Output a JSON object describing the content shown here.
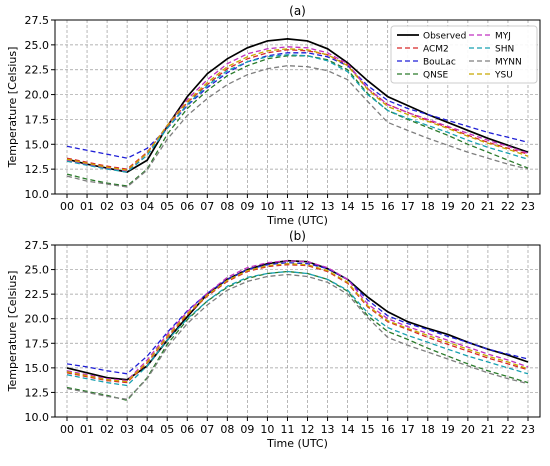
{
  "chart_data": [
    {
      "type": "line",
      "title": "(a)",
      "xlabel": "Time (UTC)",
      "ylabel": "Temperature [Celsius]",
      "categories": [
        "00",
        "01",
        "02",
        "03",
        "04",
        "05",
        "06",
        "07",
        "08",
        "09",
        "10",
        "11",
        "12",
        "13",
        "14",
        "15",
        "16",
        "17",
        "18",
        "19",
        "20",
        "21",
        "22",
        "23"
      ],
      "ylim": [
        10.0,
        27.5
      ],
      "yticks": [
        "10.0",
        "12.5",
        "15.0",
        "17.5",
        "20.0",
        "22.5",
        "25.0",
        "27.5"
      ],
      "grid": true,
      "legend_position": "top-right",
      "series": [
        {
          "name": "Observed",
          "color": "#000000",
          "dashed": false,
          "values": [
            13.5,
            13.0,
            12.6,
            12.2,
            13.4,
            16.8,
            19.8,
            22.1,
            23.6,
            24.7,
            25.4,
            25.6,
            25.4,
            24.6,
            23.2,
            21.4,
            19.8,
            18.9,
            18.0,
            17.2,
            16.4,
            15.6,
            14.9,
            14.2
          ]
        },
        {
          "name": "ACM2",
          "color": "#d62728",
          "dashed": true,
          "values": [
            13.6,
            13.2,
            12.8,
            12.5,
            14.2,
            16.8,
            19.2,
            21.0,
            22.6,
            23.6,
            24.2,
            24.5,
            24.4,
            24.0,
            23.0,
            20.6,
            19.0,
            18.2,
            17.4,
            16.7,
            15.9,
            15.2,
            14.6,
            14.0
          ]
        },
        {
          "name": "BouLac",
          "color": "#1f1fd6",
          "dashed": true,
          "values": [
            14.8,
            14.4,
            14.0,
            13.6,
            14.6,
            16.6,
            18.9,
            20.7,
            22.2,
            23.3,
            23.9,
            24.2,
            24.2,
            23.8,
            22.9,
            20.9,
            19.4,
            18.6,
            18.0,
            17.4,
            16.8,
            16.2,
            15.7,
            15.2
          ]
        },
        {
          "name": "QNSE",
          "color": "#2a7a2a",
          "dashed": true,
          "values": [
            12.0,
            11.5,
            11.1,
            10.8,
            12.5,
            16.0,
            18.6,
            20.4,
            21.9,
            22.9,
            23.6,
            23.9,
            23.9,
            23.5,
            22.5,
            20.1,
            18.4,
            17.5,
            16.7,
            15.9,
            15.0,
            14.2,
            13.4,
            12.6
          ]
        },
        {
          "name": "MYJ",
          "color": "#c030c0",
          "dashed": true,
          "values": [
            13.4,
            13.0,
            12.6,
            12.3,
            14.1,
            16.9,
            19.5,
            21.5,
            23.1,
            24.1,
            24.6,
            24.8,
            24.7,
            24.2,
            23.1,
            20.6,
            19.0,
            18.2,
            17.5,
            16.8,
            16.1,
            15.4,
            14.8,
            14.1
          ]
        },
        {
          "name": "SHN",
          "color": "#17a0b0",
          "dashed": true,
          "values": [
            13.3,
            12.9,
            12.5,
            12.2,
            13.9,
            16.6,
            19.0,
            20.9,
            22.4,
            23.3,
            23.8,
            24.0,
            23.9,
            23.4,
            22.3,
            20.0,
            18.4,
            17.6,
            16.9,
            16.2,
            15.4,
            14.7,
            14.1,
            13.5
          ]
        },
        {
          "name": "MYNN",
          "color": "#7f7f7f",
          "dashed": true,
          "values": [
            11.8,
            11.3,
            11.0,
            10.7,
            12.4,
            15.5,
            17.9,
            19.6,
            21.0,
            22.0,
            22.6,
            22.9,
            22.8,
            22.4,
            21.5,
            19.3,
            17.2,
            16.4,
            15.6,
            14.9,
            14.2,
            13.6,
            13.0,
            12.5
          ]
        },
        {
          "name": "YSU",
          "color": "#c8a800",
          "dashed": true,
          "values": [
            13.5,
            13.1,
            12.7,
            12.4,
            14.1,
            16.9,
            19.3,
            21.2,
            22.8,
            23.8,
            24.4,
            24.6,
            24.5,
            24.0,
            22.9,
            20.5,
            18.8,
            18.0,
            17.3,
            16.6,
            15.8,
            15.1,
            14.5,
            13.8
          ]
        }
      ]
    },
    {
      "type": "line",
      "title": "(b)",
      "xlabel": "Time (UTC)",
      "ylabel": "Temperature [Celsius]",
      "categories": [
        "00",
        "01",
        "02",
        "03",
        "04",
        "05",
        "06",
        "07",
        "08",
        "09",
        "10",
        "11",
        "12",
        "13",
        "14",
        "15",
        "16",
        "17",
        "18",
        "19",
        "20",
        "21",
        "22",
        "23"
      ],
      "ylim": [
        10.0,
        27.5
      ],
      "yticks": [
        "10.0",
        "12.5",
        "15.0",
        "17.5",
        "20.0",
        "22.5",
        "25.0",
        "27.5"
      ],
      "grid": true,
      "series": [
        {
          "name": "Observed",
          "color": "#000000",
          "dashed": false,
          "values": [
            15.0,
            14.5,
            14.0,
            13.8,
            15.2,
            17.8,
            20.2,
            22.5,
            24.0,
            25.0,
            25.6,
            25.9,
            25.8,
            25.1,
            24.0,
            22.2,
            20.7,
            19.7,
            19.0,
            18.4,
            17.6,
            16.9,
            16.3,
            15.6
          ]
        },
        {
          "name": "ACM2",
          "color": "#d62728",
          "dashed": true,
          "values": [
            14.5,
            14.1,
            13.7,
            13.5,
            15.5,
            18.1,
            20.4,
            22.3,
            23.8,
            24.8,
            25.3,
            25.5,
            25.4,
            24.8,
            23.6,
            21.2,
            19.7,
            18.9,
            18.1,
            17.4,
            16.7,
            16.0,
            15.4,
            14.8
          ]
        },
        {
          "name": "BouLac",
          "color": "#1f1fd6",
          "dashed": true,
          "values": [
            15.4,
            15.1,
            14.7,
            14.4,
            16.2,
            18.6,
            20.8,
            22.6,
            24.0,
            25.0,
            25.5,
            25.7,
            25.6,
            25.1,
            24.0,
            21.9,
            20.3,
            19.5,
            18.9,
            18.2,
            17.6,
            16.9,
            16.4,
            15.9
          ]
        },
        {
          "name": "QNSE",
          "color": "#2a7a2a",
          "dashed": true,
          "values": [
            13.0,
            12.6,
            12.2,
            11.7,
            14.0,
            17.4,
            19.9,
            21.8,
            23.2,
            24.1,
            24.6,
            24.8,
            24.6,
            24.0,
            22.8,
            20.3,
            18.7,
            17.9,
            17.0,
            16.2,
            15.4,
            14.7,
            14.1,
            13.5
          ]
        },
        {
          "name": "MYJ",
          "color": "#c030c0",
          "dashed": true,
          "values": [
            14.7,
            14.3,
            13.9,
            13.7,
            15.8,
            18.4,
            20.7,
            22.6,
            24.2,
            25.2,
            25.7,
            25.9,
            25.8,
            25.2,
            24.0,
            21.5,
            20.0,
            19.2,
            18.5,
            17.8,
            17.1,
            16.4,
            15.8,
            15.1
          ]
        },
        {
          "name": "SHN",
          "color": "#17a0b0",
          "dashed": true,
          "values": [
            14.3,
            13.9,
            13.5,
            13.2,
            15.2,
            17.8,
            20.0,
            21.8,
            23.3,
            24.2,
            24.6,
            24.8,
            24.6,
            24.0,
            22.9,
            20.6,
            19.1,
            18.3,
            17.6,
            16.9,
            16.2,
            15.6,
            15.0,
            14.4
          ]
        },
        {
          "name": "MYNN",
          "color": "#7f7f7f",
          "dashed": true,
          "values": [
            12.9,
            12.5,
            12.1,
            11.8,
            13.9,
            17.1,
            19.5,
            21.4,
            22.9,
            23.8,
            24.3,
            24.5,
            24.3,
            23.7,
            22.5,
            20.1,
            18.1,
            17.3,
            16.6,
            15.9,
            15.2,
            14.5,
            13.9,
            13.4
          ]
        },
        {
          "name": "YSU",
          "color": "#c8a800",
          "dashed": true,
          "values": [
            14.6,
            14.2,
            13.8,
            13.6,
            15.6,
            18.2,
            20.5,
            22.4,
            23.9,
            24.9,
            25.4,
            25.6,
            25.5,
            24.9,
            23.7,
            21.3,
            19.8,
            19.0,
            18.3,
            17.6,
            16.9,
            16.2,
            15.6,
            14.9
          ]
        }
      ]
    }
  ]
}
